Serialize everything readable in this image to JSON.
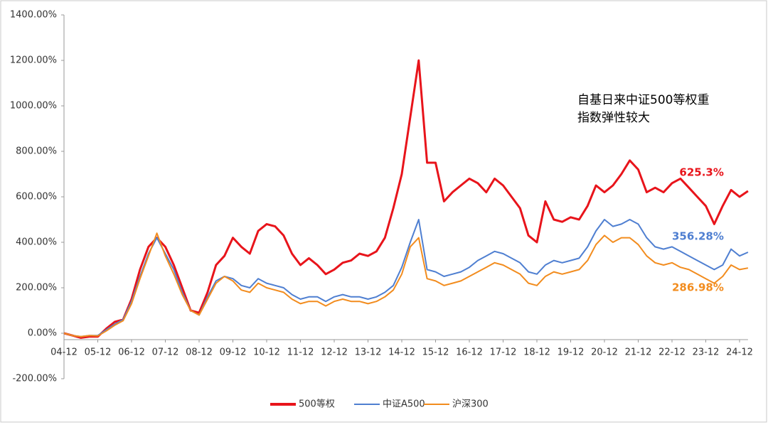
{
  "chart_data": {
    "type": "line",
    "annotation": [
      "自基日来中证500等权重",
      "指数弹性较大"
    ],
    "categories": [
      "04-12",
      null,
      null,
      null,
      "05-12",
      null,
      null,
      null,
      "06-12",
      null,
      null,
      null,
      "07-12",
      null,
      null,
      null,
      "08-12",
      null,
      null,
      null,
      "09-12",
      null,
      null,
      null,
      "10-12",
      null,
      null,
      null,
      "11-12",
      null,
      null,
      null,
      "12-12",
      null,
      null,
      null,
      "13-12",
      null,
      null,
      null,
      "14-12",
      null,
      null,
      null,
      "15-12",
      null,
      null,
      null,
      "16-12",
      null,
      null,
      null,
      "17-12",
      null,
      null,
      null,
      "18-12",
      null,
      null,
      null,
      "19-12",
      null,
      null,
      null,
      "20-12",
      null,
      null,
      null,
      "21-12",
      null,
      null,
      null,
      "22-12",
      null,
      null,
      null,
      "23-12",
      null,
      null,
      null,
      "24-12",
      null
    ],
    "series": [
      {
        "name": "500等权",
        "color": "#e8141b",
        "end_label": "625.3%",
        "values": [
          0,
          -10,
          -20,
          -15,
          -15,
          20,
          50,
          60,
          150,
          280,
          380,
          420,
          380,
          300,
          200,
          100,
          90,
          180,
          300,
          340,
          420,
          380,
          350,
          450,
          480,
          470,
          430,
          350,
          300,
          330,
          300,
          260,
          280,
          310,
          320,
          350,
          340,
          360,
          420,
          550,
          700,
          950,
          1200,
          750,
          750,
          580,
          620,
          650,
          680,
          660,
          620,
          680,
          650,
          600,
          550,
          430,
          400,
          580,
          500,
          490,
          510,
          500,
          560,
          650,
          620,
          650,
          700,
          760,
          720,
          620,
          640,
          620,
          660,
          680,
          640,
          600,
          560,
          480,
          560,
          630,
          600,
          625.3
        ]
      },
      {
        "name": "中证A500",
        "color": "#4f7fd1",
        "end_label": "356.28%",
        "values": [
          0,
          -10,
          -15,
          -10,
          -10,
          15,
          40,
          60,
          140,
          250,
          350,
          420,
          350,
          280,
          180,
          100,
          80,
          160,
          230,
          250,
          240,
          210,
          200,
          240,
          220,
          210,
          200,
          170,
          150,
          160,
          160,
          140,
          160,
          170,
          160,
          160,
          150,
          160,
          180,
          210,
          290,
          400,
          500,
          280,
          270,
          250,
          260,
          270,
          290,
          320,
          340,
          360,
          350,
          330,
          310,
          270,
          260,
          300,
          320,
          310,
          320,
          330,
          380,
          450,
          500,
          470,
          480,
          500,
          480,
          420,
          380,
          370,
          380,
          360,
          340,
          320,
          300,
          280,
          300,
          370,
          340,
          356.28
        ]
      },
      {
        "name": "沪深300",
        "color": "#f28c1e",
        "end_label": "286.98%",
        "values": [
          0,
          -10,
          -15,
          -10,
          -12,
          10,
          35,
          55,
          130,
          240,
          340,
          440,
          340,
          260,
          170,
          100,
          80,
          150,
          220,
          250,
          230,
          190,
          180,
          220,
          200,
          190,
          180,
          150,
          130,
          140,
          140,
          120,
          140,
          150,
          140,
          140,
          130,
          140,
          160,
          190,
          260,
          380,
          420,
          240,
          230,
          210,
          220,
          230,
          250,
          270,
          290,
          310,
          300,
          280,
          260,
          220,
          210,
          250,
          270,
          260,
          270,
          280,
          320,
          390,
          430,
          400,
          420,
          420,
          390,
          340,
          310,
          300,
          310,
          290,
          280,
          260,
          240,
          220,
          250,
          300,
          280,
          286.98
        ]
      }
    ],
    "ylim": [
      -200,
      1400
    ],
    "yticks": [
      {
        "value": -200,
        "label": "-200.00%"
      },
      {
        "value": 0,
        "label": "0.00%"
      },
      {
        "value": 200,
        "label": "200.00%"
      },
      {
        "value": 400,
        "label": "400.00%"
      },
      {
        "value": 600,
        "label": "600.00%"
      },
      {
        "value": 800,
        "label": "800.00%"
      },
      {
        "value": 1000,
        "label": "1000.00%"
      },
      {
        "value": 1200,
        "label": "1200.00%"
      },
      {
        "value": 1400,
        "label": "1400.00%"
      }
    ],
    "legend": "bottom"
  }
}
